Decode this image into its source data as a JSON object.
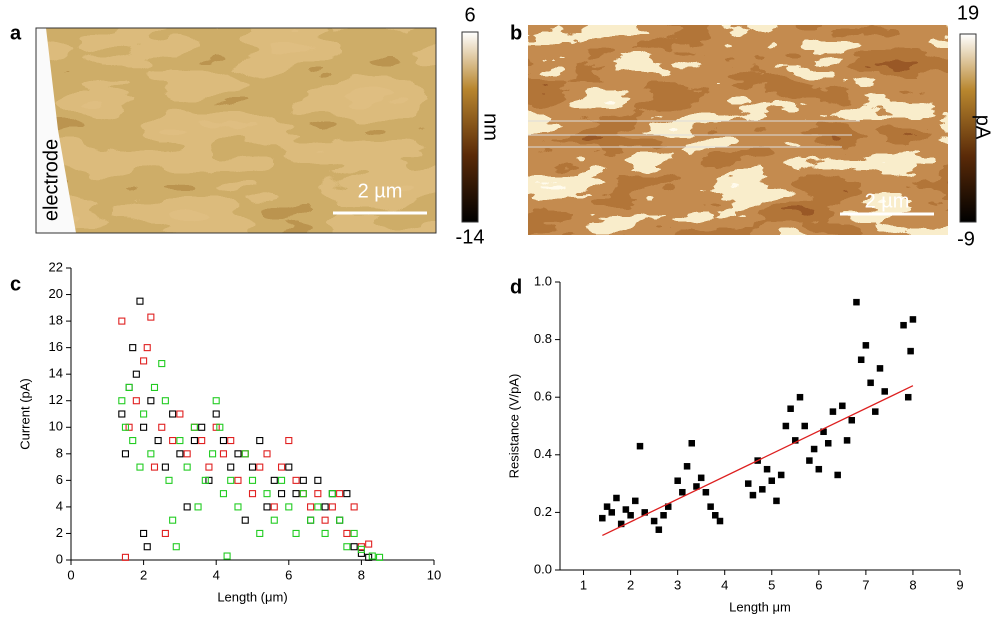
{
  "images": [
    {
      "label": "a",
      "annotation": "electrode",
      "scale_bar": "2 µm",
      "colorbar": {
        "max": 6,
        "min": -14,
        "unit": "nm"
      }
    },
    {
      "label": "b",
      "scale_bar": "2 µm",
      "colorbar": {
        "max": 19,
        "min": -9,
        "unit": "pA"
      }
    }
  ],
  "chart_data": [
    {
      "type": "scatter",
      "label": "c",
      "marker": "open-square",
      "xlabel": "Length (μm)",
      "ylabel": "Current (pA)",
      "xlim": [
        0,
        10
      ],
      "xticks": [
        0,
        2,
        4,
        6,
        8,
        10
      ],
      "ylim": [
        0,
        22
      ],
      "yticks": [
        0,
        2,
        4,
        6,
        8,
        10,
        12,
        14,
        16,
        18,
        20,
        22
      ],
      "series": [
        {
          "color": "#000000",
          "x": [
            1.4,
            1.5,
            1.6,
            1.7,
            1.8,
            1.9,
            2.0,
            2.0,
            2.1,
            2.2,
            2.4,
            2.6,
            2.8,
            3.0,
            3.2,
            3.4,
            3.6,
            3.8,
            4.0,
            4.2,
            4.4,
            4.6,
            4.8,
            5.0,
            5.2,
            5.4,
            5.6,
            5.8,
            6.0,
            6.2,
            6.4,
            6.6,
            6.8,
            7.0,
            7.2,
            7.4,
            7.6,
            7.8,
            8.0,
            8.2
          ],
          "values": [
            11,
            8,
            13,
            16,
            14,
            19.5,
            10,
            2,
            1,
            12,
            9,
            7,
            11,
            8,
            4,
            9,
            10,
            6,
            11,
            9,
            7,
            8,
            3,
            7,
            9,
            4,
            6,
            5,
            7,
            5,
            6,
            3,
            6,
            4,
            5,
            3,
            5,
            1,
            0.5,
            0.2
          ]
        },
        {
          "color": "#e02020",
          "x": [
            1.4,
            1.5,
            1.6,
            1.8,
            2.0,
            2.1,
            2.2,
            2.3,
            2.5,
            2.6,
            2.8,
            3.0,
            3.2,
            3.4,
            3.6,
            3.8,
            4.0,
            4.2,
            4.4,
            4.6,
            4.8,
            5.0,
            5.2,
            5.4,
            5.6,
            5.8,
            6.0,
            6.2,
            6.4,
            6.6,
            6.8,
            7.0,
            7.2,
            7.4,
            7.6,
            7.8,
            8.0,
            8.2
          ],
          "values": [
            18,
            0.2,
            10,
            12,
            15,
            16,
            18.3,
            7,
            10,
            2,
            9,
            11,
            8,
            10,
            9,
            7,
            10,
            8,
            9,
            6,
            8,
            5,
            7,
            8,
            4,
            7,
            9,
            6,
            5,
            4,
            5,
            3,
            4,
            5,
            2,
            4,
            1,
            1.2
          ]
        },
        {
          "color": "#22cc22",
          "x": [
            1.4,
            1.5,
            1.6,
            1.7,
            1.9,
            2.0,
            2.2,
            2.3,
            2.5,
            2.6,
            2.7,
            2.8,
            2.9,
            3.0,
            3.2,
            3.4,
            3.5,
            3.7,
            3.9,
            4.0,
            4.1,
            4.2,
            4.3,
            4.4,
            4.6,
            4.8,
            5.0,
            5.2,
            5.4,
            5.6,
            5.8,
            6.0,
            6.2,
            6.4,
            6.6,
            6.8,
            7.0,
            7.2,
            7.4,
            7.6,
            7.8,
            8.0,
            8.3,
            8.5
          ],
          "values": [
            12,
            10,
            13,
            9,
            7,
            11,
            8,
            13,
            14.8,
            12,
            6,
            3,
            1,
            9,
            7,
            10,
            4,
            6,
            8,
            12,
            10,
            5,
            0.3,
            6,
            4,
            8,
            6,
            2,
            5,
            3,
            6,
            4,
            2,
            5,
            3,
            4,
            2,
            5,
            3,
            1,
            2,
            0.8,
            0.3,
            0.2
          ]
        }
      ]
    },
    {
      "type": "scatter",
      "label": "d",
      "marker": "filled-square",
      "xlabel": "Length μm",
      "ylabel": "Resistance (V/pA)",
      "xlim": [
        0.5,
        9
      ],
      "xticks": [
        1,
        2,
        3,
        4,
        5,
        6,
        7,
        8,
        9
      ],
      "ylim": [
        0,
        1
      ],
      "yticks": [
        {
          "value": 0,
          "label": "0.0"
        },
        0.2,
        0.4,
        0.6,
        0.8,
        {
          "value": 1,
          "label": "1.0"
        }
      ],
      "series": [
        {
          "color": "#000000",
          "x": [
            1.4,
            1.5,
            1.6,
            1.7,
            1.8,
            1.9,
            2.0,
            2.1,
            2.2,
            2.3,
            2.5,
            2.6,
            2.7,
            2.8,
            3.0,
            3.1,
            3.2,
            3.3,
            3.4,
            3.5,
            3.6,
            3.7,
            3.8,
            3.9,
            4.5,
            4.6,
            4.7,
            4.8,
            4.9,
            5.0,
            5.1,
            5.2,
            5.3,
            5.4,
            5.5,
            5.6,
            5.7,
            5.8,
            5.9,
            6.0,
            6.1,
            6.2,
            6.3,
            6.4,
            6.5,
            6.6,
            6.7,
            6.8,
            6.9,
            7.0,
            7.1,
            7.2,
            7.3,
            7.4,
            7.8,
            7.9,
            8.0,
            7.95
          ],
          "values": [
            0.18,
            0.22,
            0.2,
            0.25,
            0.16,
            0.21,
            0.19,
            0.24,
            0.43,
            0.2,
            0.17,
            0.14,
            0.19,
            0.22,
            0.31,
            0.27,
            0.36,
            0.44,
            0.29,
            0.32,
            0.27,
            0.22,
            0.19,
            0.17,
            0.3,
            0.26,
            0.38,
            0.28,
            0.35,
            0.31,
            0.24,
            0.33,
            0.5,
            0.56,
            0.45,
            0.6,
            0.5,
            0.38,
            0.42,
            0.35,
            0.48,
            0.44,
            0.55,
            0.33,
            0.57,
            0.45,
            0.52,
            0.93,
            0.73,
            0.78,
            0.65,
            0.55,
            0.7,
            0.62,
            0.85,
            0.6,
            0.87,
            0.76
          ]
        }
      ],
      "fit": {
        "color": "#dd2020",
        "x": [
          1.4,
          8.0
        ],
        "values": [
          0.12,
          0.64
        ]
      }
    }
  ]
}
